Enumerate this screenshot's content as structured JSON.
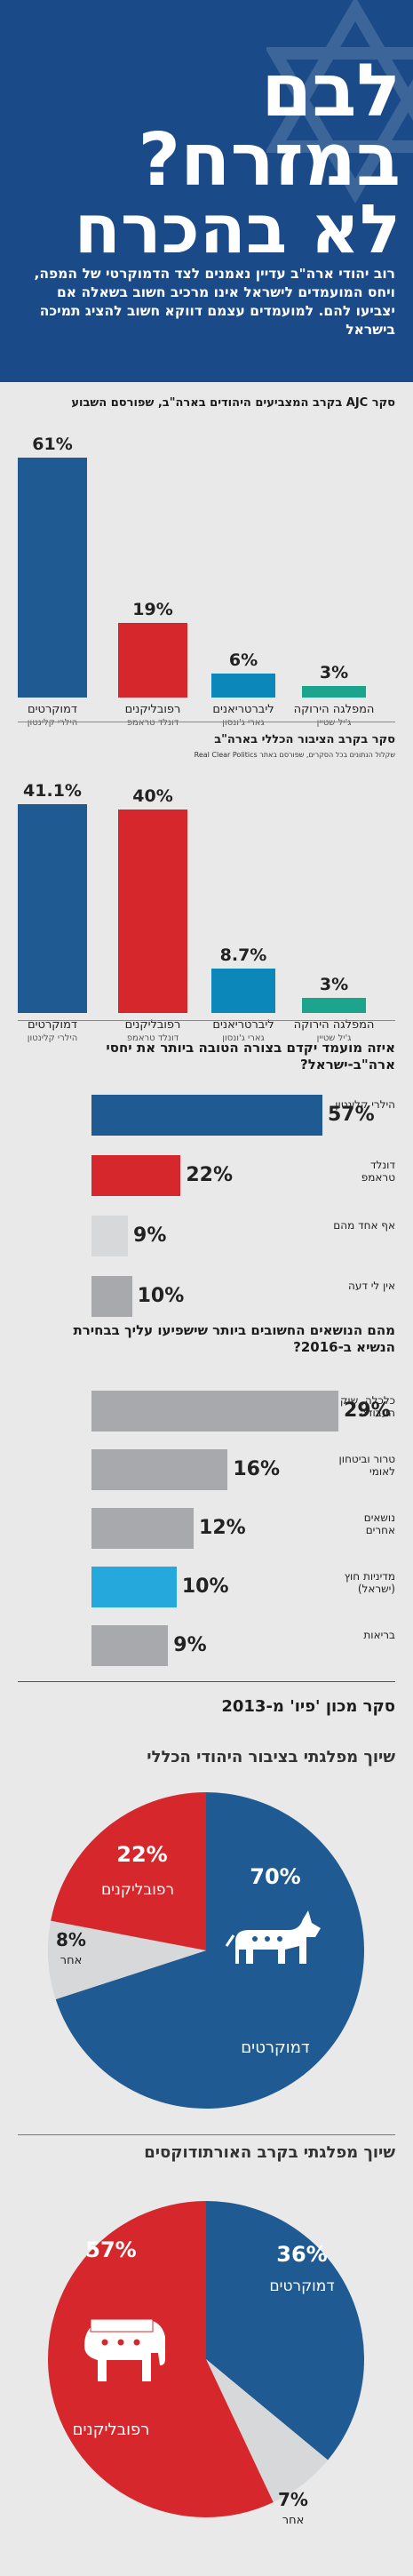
{
  "header": {
    "title_line1": "לבם",
    "title_line2": "במזרח?",
    "title_line3": "לא בהכרח",
    "subtitle": "רוב יהודי ארה\"ב עדיין נאמנים לצד הדמוקרטי של המפה, ויחס המועמדים לישראל אינו מרכיב חשוב בשאלה אם יצביעו להם. למועמדים עצמם דווקא חשוב להציג תמיכה בישראל"
  },
  "colors": {
    "dem": "#1f5a92",
    "rep": "#d6282c",
    "lib": "#0b88b9",
    "green": "#1ba58c",
    "gray": "#a8a9ac",
    "light": "#d7d8da",
    "cyan": "#25a8dc",
    "navy": "#1a4a88"
  },
  "chart_data": [
    {
      "type": "bar",
      "title": "סקר AJC בקרב המצביעים היהודים בארה\"ב, שפורסם השבוע",
      "categories": [
        "דמוקרטים",
        "רפובליקנים",
        "ליברטריאנים",
        "המפלגה הירוקה"
      ],
      "sublabels": [
        "הילרי קלינטון",
        "דונלד טראמפ",
        "גארי ג'ונסון",
        "ג'יל שטיין"
      ],
      "values": [
        61,
        19,
        6,
        3
      ],
      "value_labels": [
        "61%",
        "19%",
        "6%",
        "3%"
      ],
      "ylim": [
        0,
        61
      ]
    },
    {
      "type": "bar",
      "title": "סקר בקרב הציבור הכללי בארה\"ב",
      "source": "שקלול הנתונים בכל הסקרים, שפורסם באתר Real Clear Politics",
      "categories": [
        "דמוקרטים",
        "רפובליקנים",
        "ליברטריאנים",
        "המפלגה הירוקה"
      ],
      "sublabels": [
        "הילרי קלינטון",
        "דונלד טראמפ",
        "גארי ג'ונסון",
        "ג'יל שטיין"
      ],
      "values": [
        41.1,
        40,
        8.7,
        3
      ],
      "value_labels": [
        "41.1%",
        "40%",
        "8.7%",
        "3%"
      ],
      "ylim": [
        0,
        41.1
      ]
    },
    {
      "type": "bar",
      "orientation": "horizontal",
      "title": "איזה מועמד יקדם בצורה הטובה ביותר את יחסי ארה\"ב-ישראל?",
      "categories": [
        "הילרי קלינטון",
        "דונלד טראמפ",
        "אף אחד מהם",
        "אין לי דעה"
      ],
      "values": [
        57,
        22,
        9,
        10
      ],
      "value_labels": [
        "57%",
        "22%",
        "9%",
        "10%"
      ],
      "xlim": [
        0,
        57
      ]
    },
    {
      "type": "bar",
      "orientation": "horizontal",
      "title": "מהם הנושאים החשובים ביותר שישפיעו עליך בבחירת הנשיא ב-2016?",
      "categories": [
        "כלכלה, שוק העבודה",
        "טרור וביטחון לאומי",
        "נושאים אחרים",
        "מדיניות חוץ (ישראל)",
        "בריאות"
      ],
      "values": [
        29,
        16,
        12,
        10,
        9
      ],
      "value_labels": [
        "29%",
        "16%",
        "12%",
        "10%",
        "9%"
      ],
      "xlim": [
        0,
        29
      ]
    },
    {
      "type": "pie",
      "section_title": "סקר מכון 'פיו' מ-2013",
      "title": "שיוך מפלגתי בציבור היהודי הכללי",
      "categories": [
        "דמוקרטים",
        "רפובליקנים",
        "אחר"
      ],
      "values": [
        70,
        22,
        8
      ],
      "value_labels": [
        "70%",
        "22%",
        "8%"
      ]
    },
    {
      "type": "pie",
      "title": "שיוך מפלגתי בקרב האורתודוקסים",
      "categories": [
        "רפובליקנים",
        "דמוקרטים",
        "אחר"
      ],
      "values": [
        57,
        36,
        7
      ],
      "value_labels": [
        "57%",
        "36%",
        "7%"
      ]
    }
  ]
}
